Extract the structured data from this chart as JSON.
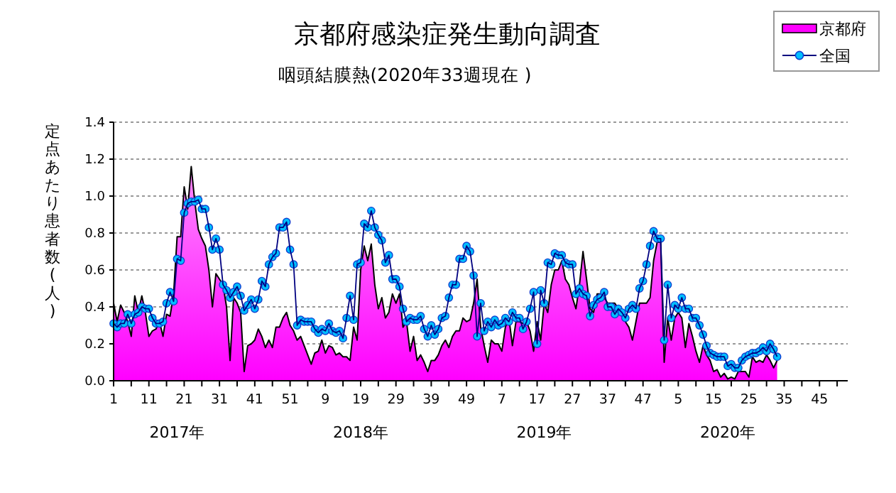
{
  "chart_data": {
    "type": "area",
    "title": "京都府感染症発生動向調査",
    "subtitle": "咽頭結膜熱(2020年33週現在 )",
    "ylabel": "定点あたり患者数(人)",
    "categories": [
      "1",
      null,
      null,
      null,
      null,
      null,
      null,
      null,
      null,
      null,
      "11",
      null,
      null,
      null,
      null,
      null,
      null,
      null,
      null,
      null,
      "21",
      null,
      null,
      null,
      null,
      null,
      null,
      null,
      null,
      null,
      "31",
      null,
      null,
      null,
      null,
      null,
      null,
      null,
      null,
      null,
      "41",
      null,
      null,
      null,
      null,
      null,
      null,
      null,
      null,
      null,
      "51",
      null,
      null,
      null,
      null,
      null,
      null,
      null,
      null,
      null,
      "9",
      null,
      null,
      null,
      null,
      null,
      null,
      null,
      null,
      null,
      "19",
      null,
      null,
      null,
      null,
      null,
      null,
      null,
      null,
      null,
      "29",
      null,
      null,
      null,
      null,
      null,
      null,
      null,
      null,
      null,
      "39",
      null,
      null,
      null,
      null,
      null,
      null,
      null,
      null,
      null,
      "49",
      null,
      null,
      null,
      null,
      null,
      null,
      null,
      null,
      null,
      "7",
      null,
      null,
      null,
      null,
      null,
      null,
      null,
      null,
      null,
      "17",
      null,
      null,
      null,
      null,
      null,
      null,
      null,
      null,
      null,
      "27",
      null,
      null,
      null,
      null,
      null,
      null,
      null,
      null,
      null,
      "37",
      null,
      null,
      null,
      null,
      null,
      null,
      null,
      null,
      null,
      "47",
      null,
      null,
      null,
      null,
      null,
      null,
      null,
      null,
      null,
      "5",
      null,
      null,
      null,
      null,
      null,
      null,
      null,
      null,
      null,
      "15",
      null,
      null,
      null,
      null,
      null,
      null,
      null,
      null,
      null,
      "25",
      null,
      null,
      null,
      null,
      null,
      null,
      null,
      null,
      null,
      "35",
      null,
      null,
      null,
      null,
      null,
      null,
      null,
      null,
      null,
      "45",
      null,
      null,
      null,
      null,
      null,
      null,
      null,
      null
    ],
    "annotations": [
      "2017年",
      "2018年",
      "2019年",
      "2020年"
    ],
    "ylim": [
      0,
      1.4
    ],
    "yticks": [
      {
        "value": 0,
        "label": "0.0"
      },
      {
        "value": 0.2,
        "label": "0.2"
      },
      {
        "value": 0.4,
        "label": "0.4"
      },
      {
        "value": 0.6,
        "label": "0.6"
      },
      {
        "value": 0.8,
        "label": "0.8"
      },
      {
        "value": 1,
        "label": "1.0"
      },
      {
        "value": 1.2,
        "label": "1.2"
      },
      {
        "value": 1.4,
        "label": "1.4"
      }
    ],
    "grid": "y",
    "legend": "top right",
    "series": [
      {
        "name": "京都府",
        "color": "#ff00ff",
        "values": [
          0.42,
          0.32,
          0.41,
          0.37,
          0.32,
          0.24,
          0.46,
          0.37,
          0.46,
          0.37,
          0.24,
          0.27,
          0.28,
          0.32,
          0.24,
          0.36,
          0.35,
          0.47,
          0.78,
          0.78,
          1.05,
          0.93,
          1.16,
          0.97,
          0.82,
          0.77,
          0.73,
          0.6,
          0.4,
          0.58,
          0.55,
          0.52,
          0.4,
          0.11,
          0.45,
          0.42,
          0.37,
          0.05,
          0.19,
          0.2,
          0.22,
          0.28,
          0.24,
          0.18,
          0.22,
          0.18,
          0.29,
          0.29,
          0.34,
          0.37,
          0.3,
          0.27,
          0.22,
          0.24,
          0.19,
          0.14,
          0.09,
          0.15,
          0.16,
          0.22,
          0.15,
          0.19,
          0.18,
          0.14,
          0.15,
          0.13,
          0.13,
          0.11,
          0.29,
          0.22,
          0.6,
          0.73,
          0.65,
          0.74,
          0.52,
          0.39,
          0.45,
          0.34,
          0.37,
          0.47,
          0.42,
          0.47,
          0.29,
          0.32,
          0.16,
          0.24,
          0.11,
          0.14,
          0.1,
          0.05,
          0.11,
          0.11,
          0.14,
          0.19,
          0.22,
          0.18,
          0.24,
          0.27,
          0.27,
          0.34,
          0.32,
          0.33,
          0.42,
          0.55,
          0.29,
          0.19,
          0.1,
          0.22,
          0.2,
          0.2,
          0.16,
          0.29,
          0.34,
          0.19,
          0.32,
          0.32,
          0.31,
          0.32,
          0.27,
          0.16,
          0.32,
          0.22,
          0.42,
          0.37,
          0.52,
          0.6,
          0.6,
          0.65,
          0.55,
          0.52,
          0.45,
          0.39,
          0.52,
          0.7,
          0.55,
          0.39,
          0.37,
          0.47,
          0.47,
          0.45,
          0.42,
          0.42,
          0.42,
          0.39,
          0.37,
          0.32,
          0.29,
          0.22,
          0.32,
          0.42,
          0.42,
          0.42,
          0.45,
          0.65,
          0.75,
          0.75,
          0.1,
          0.34,
          0.22,
          0.34,
          0.37,
          0.34,
          0.18,
          0.31,
          0.24,
          0.16,
          0.1,
          0.19,
          0.14,
          0.11,
          0.05,
          0.06,
          0.02,
          0.04,
          0.01,
          0.02,
          0.01,
          0.05,
          0.05,
          0.05,
          0.02,
          0.13,
          0.1,
          0.11,
          0.1,
          0.14,
          0.11,
          0.07,
          0.11,
          null,
          null,
          null,
          null,
          null,
          null,
          null,
          null,
          null,
          null,
          null,
          null,
          null,
          null,
          null,
          null,
          null,
          null,
          null,
          null
        ]
      },
      {
        "name": "全国",
        "type": "line",
        "marker": "circle",
        "color": "#00bfff",
        "values": [
          0.31,
          0.29,
          0.31,
          0.31,
          0.36,
          0.31,
          0.36,
          0.37,
          0.4,
          0.39,
          0.39,
          0.34,
          0.31,
          0.31,
          0.32,
          0.42,
          0.48,
          0.43,
          0.66,
          0.65,
          0.91,
          0.96,
          0.97,
          0.97,
          0.98,
          0.93,
          0.93,
          0.83,
          0.71,
          0.77,
          0.71,
          0.52,
          0.49,
          0.45,
          0.48,
          0.51,
          0.46,
          0.38,
          0.41,
          0.44,
          0.39,
          0.44,
          0.54,
          0.51,
          0.63,
          0.67,
          0.69,
          0.83,
          0.83,
          0.86,
          0.71,
          0.63,
          0.3,
          0.33,
          0.32,
          0.32,
          0.32,
          0.28,
          0.26,
          0.28,
          0.27,
          0.31,
          0.27,
          0.26,
          0.27,
          0.23,
          0.34,
          0.46,
          0.33,
          0.63,
          0.64,
          0.85,
          0.83,
          0.92,
          0.83,
          0.79,
          0.76,
          0.64,
          0.68,
          0.55,
          0.55,
          0.51,
          0.39,
          0.32,
          0.34,
          0.33,
          0.33,
          0.35,
          0.28,
          0.24,
          0.3,
          0.25,
          0.28,
          0.34,
          0.35,
          0.45,
          0.52,
          0.52,
          0.66,
          0.66,
          0.73,
          0.7,
          0.57,
          0.24,
          0.42,
          0.27,
          0.32,
          0.29,
          0.33,
          0.3,
          0.31,
          0.34,
          0.32,
          0.37,
          0.34,
          0.34,
          0.28,
          0.32,
          0.39,
          0.48,
          0.2,
          0.49,
          0.42,
          0.64,
          0.63,
          0.69,
          0.68,
          0.68,
          0.64,
          0.63,
          0.63,
          0.47,
          0.5,
          0.47,
          0.46,
          0.35,
          0.41,
          0.44,
          0.45,
          0.48,
          0.4,
          0.4,
          0.36,
          0.39,
          0.37,
          0.34,
          0.39,
          0.41,
          0.39,
          0.5,
          0.54,
          0.63,
          0.73,
          0.81,
          0.77,
          0.77,
          0.22,
          0.52,
          0.34,
          0.41,
          0.39,
          0.45,
          0.39,
          0.39,
          0.34,
          0.34,
          0.3,
          0.25,
          0.19,
          0.15,
          0.14,
          0.13,
          0.13,
          0.13,
          0.08,
          0.09,
          0.07,
          0.07,
          0.11,
          0.13,
          0.14,
          0.15,
          0.15,
          0.16,
          0.18,
          0.16,
          0.2,
          0.17,
          0.13,
          null,
          null,
          null,
          null,
          null,
          null,
          null,
          null,
          null,
          null,
          null,
          null,
          null,
          null,
          null,
          null,
          null,
          null,
          null,
          null
        ]
      }
    ]
  }
}
